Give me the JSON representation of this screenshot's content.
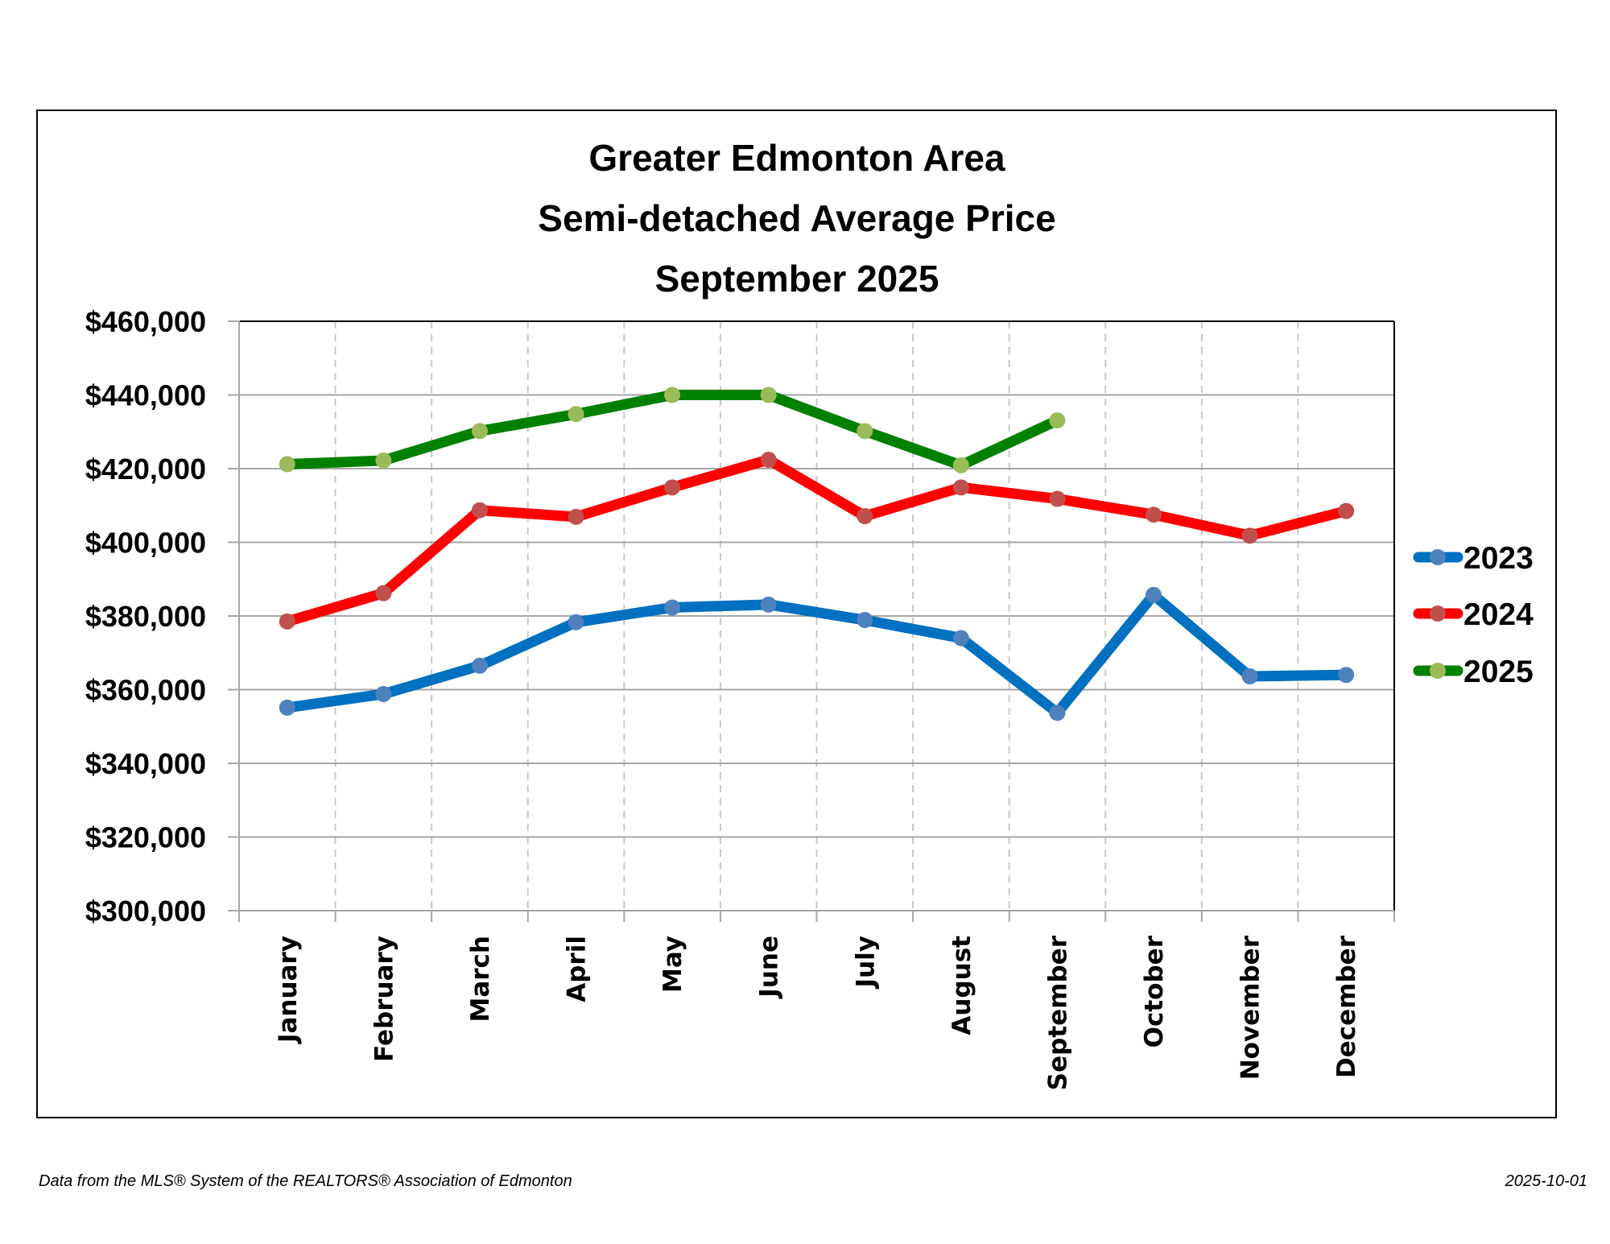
{
  "chart_data": {
    "type": "line",
    "title": [
      "Greater Edmonton Area",
      "Semi-detached Average Price",
      "September 2025"
    ],
    "xlabel": "",
    "ylabel": "",
    "categories": [
      "January",
      "February",
      "March",
      "April",
      "May",
      "June",
      "July",
      "August",
      "September",
      "October",
      "November",
      "December"
    ],
    "ylim": [
      300000,
      460000
    ],
    "yticks": [
      300000,
      320000,
      340000,
      360000,
      380000,
      400000,
      420000,
      440000,
      460000
    ],
    "ytick_labels": [
      "$300,000",
      "$320,000",
      "$340,000",
      "$360,000",
      "$380,000",
      "$400,000",
      "$420,000",
      "$440,000",
      "$460,000"
    ],
    "grid": "horizontal solid, vertical dashed",
    "legend_position": "right",
    "series": [
      {
        "name": "2023",
        "line_color": "#0070C0",
        "marker_color": "#4F81BD",
        "values": [
          355100,
          358800,
          366500,
          378300,
          382300,
          383100,
          378900,
          374000,
          353700,
          385700,
          363600,
          364000
        ]
      },
      {
        "name": "2024",
        "line_color": "#FF0000",
        "marker_color": "#C0504D",
        "values": [
          378500,
          386200,
          408700,
          406900,
          414900,
          422400,
          407100,
          414900,
          411800,
          407500,
          401800,
          408500
        ]
      },
      {
        "name": "2025",
        "line_color": "#008000",
        "marker_color": "#9BBB59",
        "values": [
          421200,
          422200,
          430200,
          434800,
          440000,
          440000,
          430200,
          420900,
          433100,
          null,
          null,
          null
        ]
      }
    ]
  },
  "footer": {
    "source": "Data from the MLS® System of the REALTORS® Association of Edmonton",
    "date": "2025-10-01"
  }
}
